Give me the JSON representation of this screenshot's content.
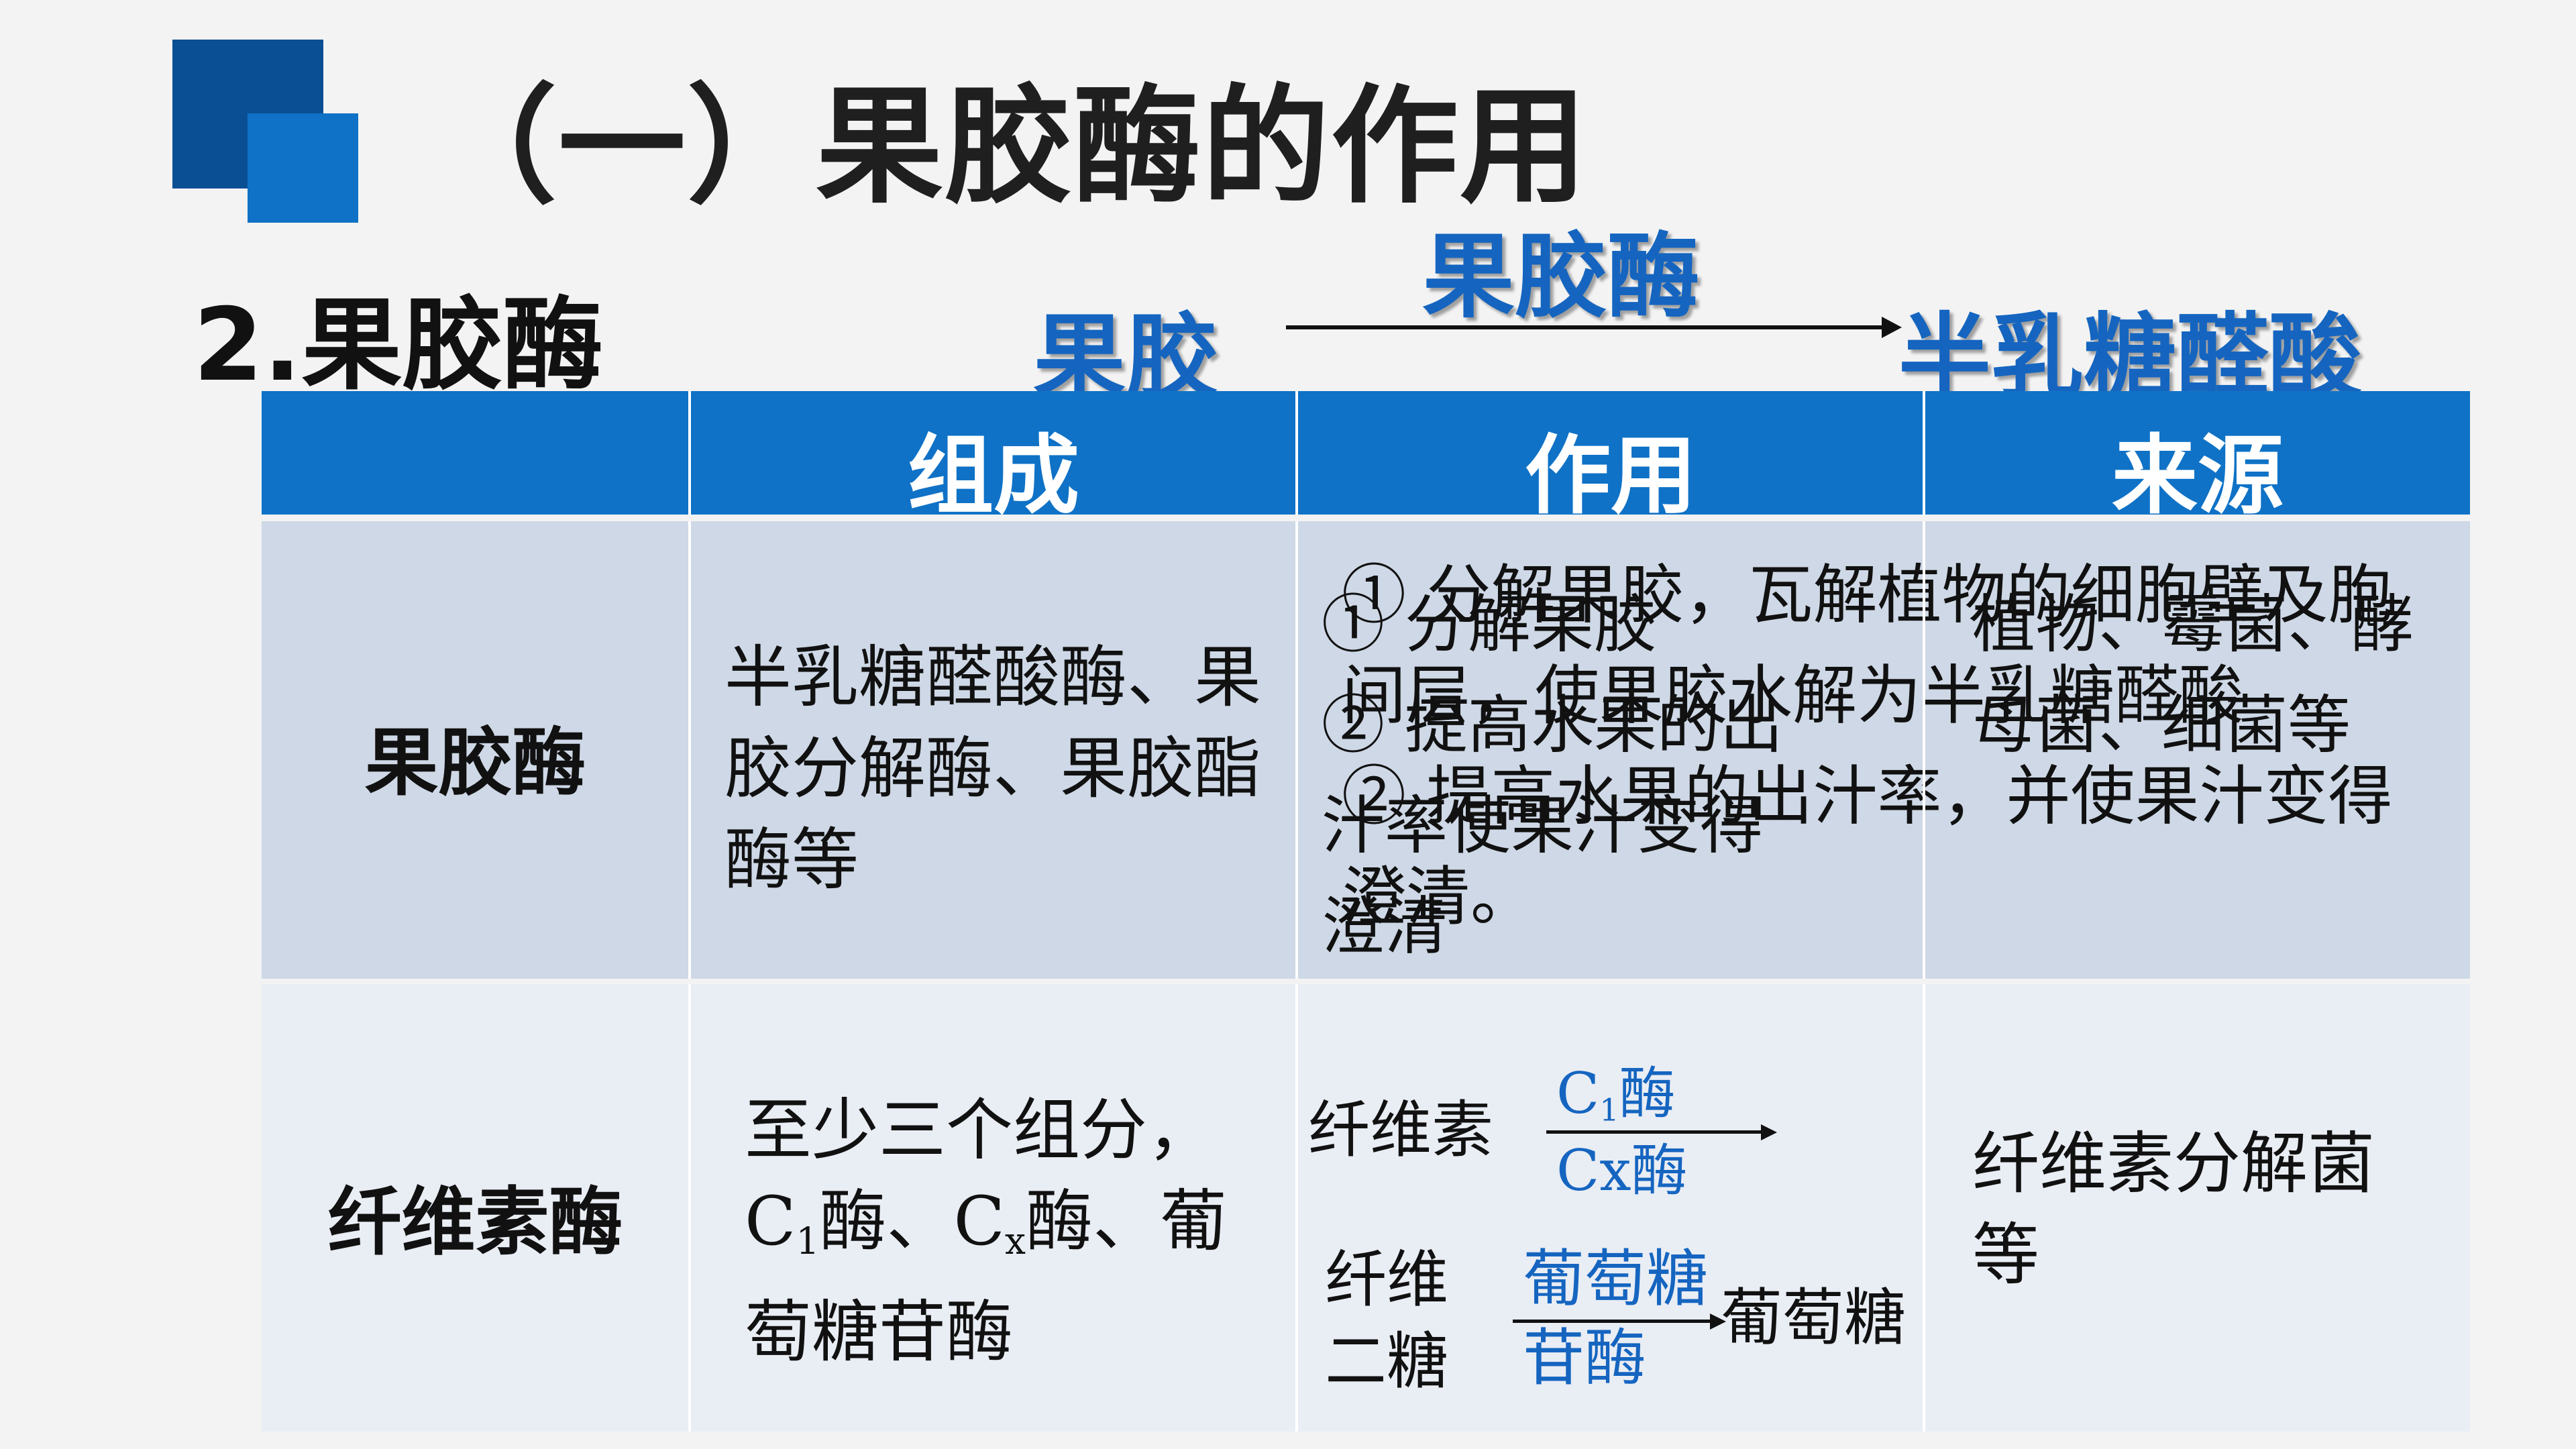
{
  "title": "（一）果胶酶的作用",
  "section_heading": "2.果胶酶",
  "reaction": {
    "substrate": "果胶",
    "enzyme": "果胶酶",
    "product": "半乳糖醛酸"
  },
  "table": {
    "headers": [
      "组成",
      "作用",
      "来源"
    ],
    "row1": {
      "label": "果胶酶",
      "composition": "半乳糖醛酸酶、果胶分解酶、果胶酯酶等",
      "function_a": "① 分解果胶，瓦解植物的细胞壁及胞间层，使果胶水解为半乳糖醛酸\n② 提高水果的出汁率，并使果汁变得澄清。",
      "function_b": "① 分解果胶\n② 提高水果的出\n汁率使果汁变得\n澄清",
      "source": "植物、霉菌、酵母菌、细菌等"
    },
    "row2": {
      "label": "纤维素酶",
      "composition_line1": "至少三个组分，",
      "composition_c1": "C",
      "composition_c1_sub": "1",
      "composition_mid": "酶、C",
      "composition_cx_sub": "x",
      "composition_end": "酶、葡",
      "composition_line3": "萄糖苷酶",
      "reaction1_substrate": "纤维素",
      "reaction1_enzyme_c": "C",
      "reaction1_enzyme_c_sub": "1",
      "reaction1_enzyme_c_tail": "酶",
      "reaction1_enzyme_cx": "Cx酶",
      "reaction2_substrate_line1": "纤维",
      "reaction2_substrate_line2": "二糖",
      "reaction2_enzyme_line1": "葡萄糖",
      "reaction2_enzyme_line2": "苷酶",
      "reaction2_product": "葡萄糖",
      "source": "纤维素分解菌等"
    }
  },
  "colors": {
    "header_blue": "#0f72c6",
    "dark_square": "#0a4f94",
    "row1_bg": "#ced8e6",
    "row2_bg": "#e9edf4",
    "accent_text": "#1565c0"
  }
}
